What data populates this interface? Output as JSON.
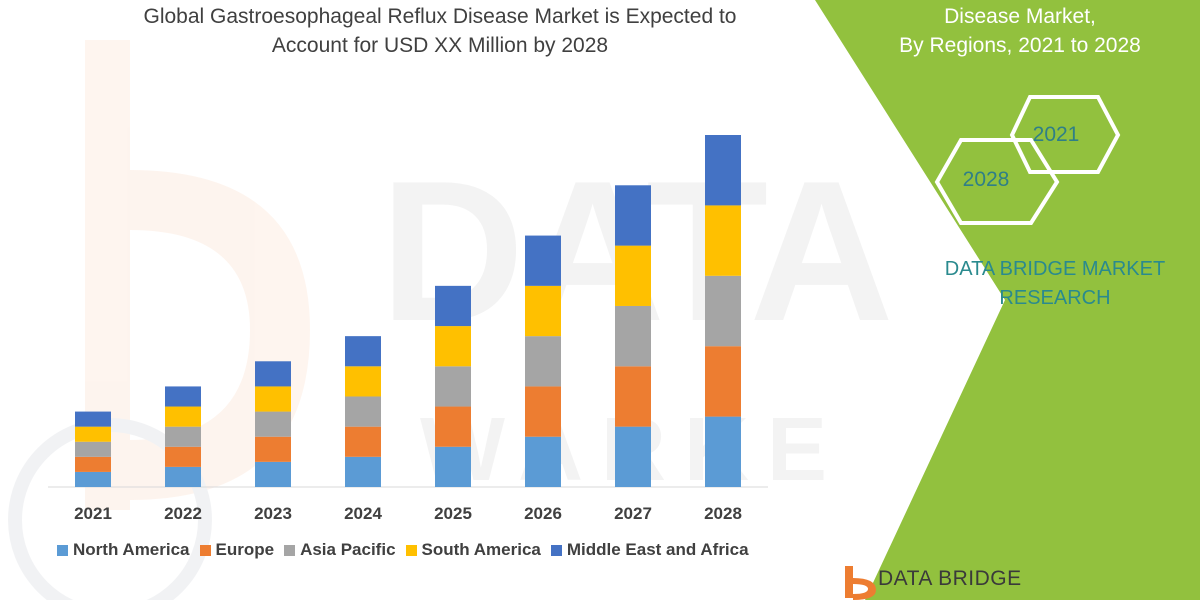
{
  "header": {
    "title_line1": "Global Gastroesophageal Reflux Disease Market is Expected to",
    "title_line2": "Account for USD XX Million by 2028"
  },
  "side_panel": {
    "title_line1": "Disease Market,",
    "title_line2": "By Regions, 2021 to 2028",
    "hex_back_label": "2021",
    "hex_front_label": "2028",
    "brand_line1": "DATA BRIDGE MARKET",
    "brand_line2": "RESEARCH",
    "panel_color": "#92c13e",
    "hex_stroke_color": "#ffffff",
    "brand_color": "#2a8a8e"
  },
  "footer": {
    "logo_text": "DATA BRIDGE",
    "logo_icon": "data-bridge-logo-icon"
  },
  "chart_data": {
    "type": "bar",
    "stacked": true,
    "categories": [
      "2021",
      "2022",
      "2023",
      "2024",
      "2025",
      "2026",
      "2027",
      "2028"
    ],
    "series": [
      {
        "name": "North America",
        "color": "#5b9bd5",
        "values": [
          15,
          20,
          25,
          30,
          40,
          50,
          60,
          70
        ]
      },
      {
        "name": "Europe",
        "color": "#ed7d31",
        "values": [
          15,
          20,
          25,
          30,
          40,
          50,
          60,
          70
        ]
      },
      {
        "name": "Asia Pacific",
        "color": "#a5a5a5",
        "values": [
          15,
          20,
          25,
          30,
          40,
          50,
          60,
          70
        ]
      },
      {
        "name": "South America",
        "color": "#ffc000",
        "values": [
          15,
          20,
          25,
          30,
          40,
          50,
          60,
          70
        ]
      },
      {
        "name": "Middle East and Africa",
        "color": "#4472c4",
        "values": [
          15,
          20,
          25,
          30,
          40,
          50,
          60,
          70
        ]
      }
    ],
    "ylim": [
      0,
      350
    ],
    "grid": false,
    "legend_position": "bottom"
  }
}
